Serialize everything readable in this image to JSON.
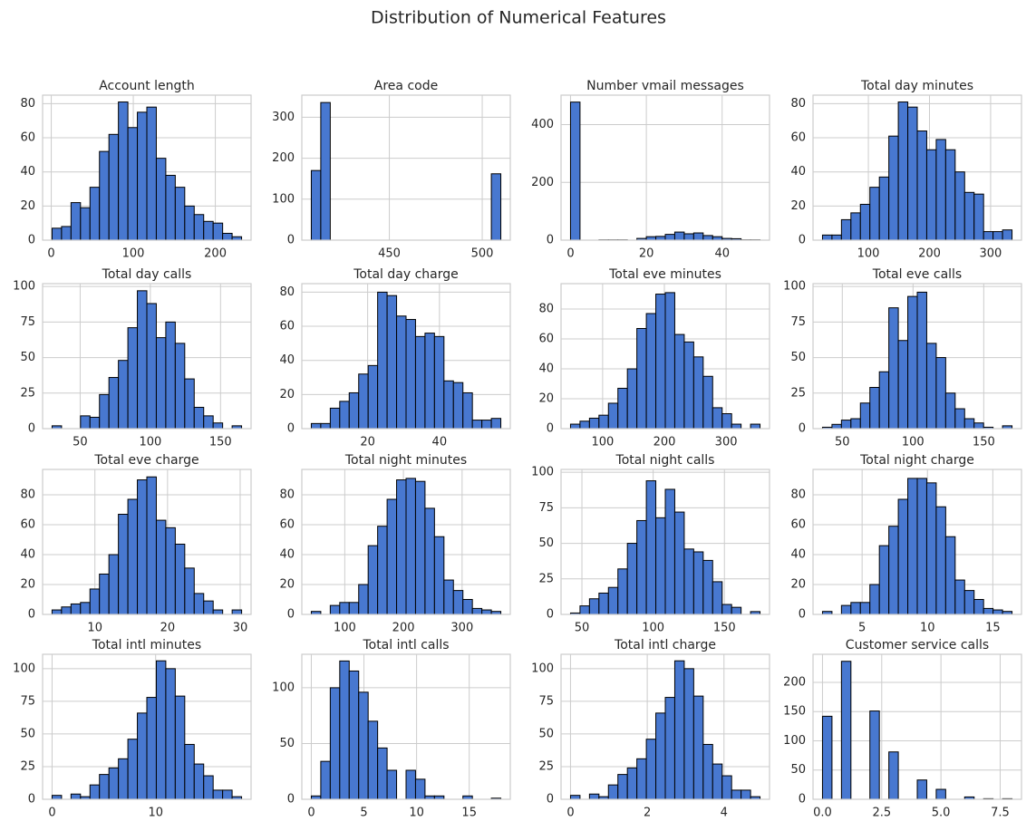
{
  "title": "Distribution of Numerical Features",
  "chart_data": [
    {
      "type": "histogram",
      "title": "Account length",
      "color": "#4878d0",
      "grid": true,
      "bins": [
        1,
        12.55,
        24.1,
        35.65,
        47.2,
        58.75,
        70.3,
        81.85,
        93.4,
        104.95,
        116.5,
        128.05,
        139.6,
        151.15,
        162.7,
        174.25,
        185.8,
        197.35,
        208.9,
        220.45,
        232
      ],
      "counts": [
        7,
        8,
        22,
        19,
        31,
        52,
        62,
        81,
        66,
        75,
        78,
        48,
        38,
        31,
        20,
        15,
        11,
        10,
        4,
        2
      ],
      "xlim": [
        -10.55,
        243.55
      ],
      "xticks": [
        0,
        100,
        200
      ],
      "ylim": [
        0,
        85
      ],
      "yticks": [
        0,
        20,
        40,
        60,
        80
      ]
    },
    {
      "type": "histogram",
      "title": "Area code",
      "color": "#4878d0",
      "grid": true,
      "bins": [
        408,
        413.1,
        418.2,
        423.3,
        428.4,
        433.5,
        438.6,
        443.7,
        448.8,
        453.9,
        459,
        464.1,
        469.2,
        474.3,
        479.4,
        484.5,
        489.6,
        494.7,
        499.8,
        504.9,
        510
      ],
      "counts": [
        170,
        336,
        0,
        0,
        0,
        0,
        0,
        0,
        0,
        0,
        0,
        0,
        0,
        0,
        0,
        0,
        0,
        0,
        0,
        162
      ],
      "xlim": [
        402.9,
        515.1
      ],
      "xticks": [
        450,
        500
      ],
      "ylim": [
        0,
        354
      ],
      "yticks": [
        0,
        100,
        200,
        300
      ]
    },
    {
      "type": "histogram",
      "title": "Number vmail messages",
      "color": "#4878d0",
      "grid": true,
      "bins": [
        0,
        2.5,
        5,
        7.5,
        10,
        12.5,
        15,
        17.5,
        20,
        22.5,
        25,
        27.5,
        30,
        32.5,
        35,
        37.5,
        40,
        42.5,
        45,
        47.5,
        50
      ],
      "counts": [
        478,
        0,
        0,
        1,
        1,
        1,
        0,
        6,
        12,
        13,
        20,
        28,
        22,
        25,
        16,
        12,
        6,
        5,
        1,
        1
      ],
      "xlim": [
        -2.5,
        52.5
      ],
      "xticks": [
        0,
        20,
        40
      ],
      "ylim": [
        0,
        502
      ],
      "yticks": [
        0,
        200,
        400
      ]
    },
    {
      "type": "histogram",
      "title": "Total day minutes",
      "color": "#4878d0",
      "grid": true,
      "bins": [
        25,
        40.5,
        56,
        71.5,
        87,
        102.5,
        118,
        133.5,
        149,
        164.5,
        180,
        195.5,
        211,
        226.5,
        242,
        257.5,
        273,
        288.5,
        304,
        319.5,
        335
      ],
      "counts": [
        3,
        3,
        12,
        16,
        21,
        31,
        37,
        61,
        81,
        78,
        64,
        53,
        59,
        53,
        40,
        28,
        27,
        5,
        5,
        6
      ],
      "xlim": [
        9.5,
        350.5
      ],
      "xticks": [
        100,
        200,
        300
      ],
      "ylim": [
        0,
        85
      ],
      "yticks": [
        0,
        20,
        40,
        60,
        80
      ]
    },
    {
      "type": "histogram",
      "title": "Total day calls",
      "color": "#4878d0",
      "grid": true,
      "bins": [
        30,
        36.75,
        43.5,
        50.25,
        57,
        63.75,
        70.5,
        77.25,
        84,
        90.75,
        97.5,
        104.25,
        111,
        117.75,
        124.5,
        131.25,
        138,
        144.75,
        151.5,
        158.25,
        165
      ],
      "counts": [
        2,
        0,
        0,
        9,
        8,
        24,
        36,
        48,
        71,
        97,
        88,
        64,
        75,
        60,
        35,
        15,
        9,
        4,
        0,
        2
      ],
      "xlim": [
        23.25,
        171.75
      ],
      "xticks": [
        50,
        100,
        150
      ],
      "ylim": [
        0,
        102
      ],
      "yticks": [
        0,
        25,
        50,
        75,
        100
      ]
    },
    {
      "type": "histogram",
      "title": "Total day charge",
      "color": "#4878d0",
      "grid": true,
      "bins": [
        4.3,
        6.94,
        9.58,
        12.22,
        14.86,
        17.5,
        20.14,
        22.78,
        25.42,
        28.06,
        30.7,
        33.34,
        35.98,
        38.62,
        41.26,
        43.9,
        46.54,
        49.18,
        51.82,
        54.46,
        57.1
      ],
      "counts": [
        3,
        3,
        12,
        16,
        21,
        32,
        37,
        80,
        78,
        66,
        64,
        54,
        56,
        54,
        28,
        27,
        21,
        5,
        5,
        6
      ],
      "xlim": [
        1.66,
        59.74
      ],
      "xticks": [
        20,
        40
      ],
      "ylim": [
        0,
        85
      ],
      "yticks": [
        0,
        20,
        40,
        60,
        80
      ]
    },
    {
      "type": "histogram",
      "title": "Total eve minutes",
      "color": "#4878d0",
      "grid": true,
      "bins": [
        48,
        63.35,
        78.7,
        94.05,
        109.4,
        124.75,
        140.1,
        155.45,
        170.8,
        186.15,
        201.5,
        216.85,
        232.2,
        247.55,
        262.9,
        278.25,
        293.6,
        308.95,
        324.3,
        339.65,
        355
      ],
      "counts": [
        3,
        5,
        7,
        9,
        17,
        27,
        40,
        67,
        77,
        90,
        91,
        63,
        58,
        48,
        35,
        14,
        10,
        3,
        0,
        3
      ],
      "xlim": [
        32.65,
        370.35
      ],
      "xticks": [
        100,
        200,
        300
      ],
      "ylim": [
        0,
        97
      ],
      "yticks": [
        0,
        20,
        40,
        60,
        80
      ]
    },
    {
      "type": "histogram",
      "title": "Total eve calls",
      "color": "#4878d0",
      "grid": true,
      "bins": [
        36,
        42.7,
        49.4,
        56.1,
        62.8,
        69.5,
        76.2,
        82.9,
        89.6,
        96.3,
        103,
        109.7,
        116.4,
        123.1,
        129.8,
        136.5,
        143.2,
        149.9,
        156.6,
        163.3,
        170
      ],
      "counts": [
        1,
        3,
        6,
        7,
        18,
        29,
        40,
        85,
        62,
        93,
        96,
        60,
        50,
        25,
        14,
        7,
        4,
        1,
        0,
        2
      ],
      "xlim": [
        29.3,
        176.7
      ],
      "xticks": [
        50,
        100,
        150
      ],
      "ylim": [
        0,
        102
      ],
      "yticks": [
        0,
        25,
        50,
        75,
        100
      ]
    },
    {
      "type": "histogram",
      "title": "Total eve charge",
      "color": "#4878d0",
      "grid": true,
      "bins": [
        4.1,
        5.405,
        6.71,
        8.015,
        9.32,
        10.625,
        11.93,
        13.235,
        14.54,
        15.845,
        17.15,
        18.455,
        19.76,
        21.065,
        22.37,
        23.675,
        24.98,
        26.285,
        27.59,
        28.895,
        30.2
      ],
      "counts": [
        3,
        5,
        7,
        8,
        17,
        27,
        40,
        67,
        77,
        90,
        92,
        63,
        58,
        47,
        31,
        14,
        9,
        3,
        0,
        3
      ],
      "xlim": [
        2.8,
        31.5
      ],
      "xticks": [
        10,
        20,
        30
      ],
      "ylim": [
        0,
        97
      ],
      "yticks": [
        0,
        20,
        40,
        60,
        80
      ]
    },
    {
      "type": "histogram",
      "title": "Total night minutes",
      "color": "#4878d0",
      "grid": true,
      "bins": [
        43,
        59.15,
        75.3,
        91.45,
        107.6,
        123.75,
        139.9,
        156.05,
        172.2,
        188.35,
        204.5,
        220.65,
        236.8,
        252.95,
        269.1,
        285.25,
        301.4,
        317.55,
        333.7,
        349.85,
        366
      ],
      "counts": [
        2,
        0,
        6,
        8,
        8,
        20,
        46,
        59,
        77,
        90,
        91,
        89,
        71,
        52,
        23,
        16,
        10,
        4,
        3,
        2
      ],
      "xlim": [
        26.85,
        382.15
      ],
      "xticks": [
        100,
        200,
        300
      ],
      "ylim": [
        0,
        97
      ],
      "yticks": [
        0,
        20,
        40,
        60,
        80
      ]
    },
    {
      "type": "histogram",
      "title": "Total night calls",
      "color": "#4878d0",
      "grid": true,
      "bins": [
        42,
        48.65,
        55.3,
        61.95,
        68.6,
        75.25,
        81.9,
        88.55,
        95.2,
        101.85,
        108.5,
        115.15,
        121.8,
        128.45,
        135.1,
        141.75,
        148.4,
        155.05,
        161.7,
        168.35,
        175
      ],
      "counts": [
        1,
        6,
        11,
        15,
        19,
        32,
        50,
        66,
        94,
        68,
        88,
        72,
        46,
        44,
        38,
        23,
        7,
        5,
        0,
        2
      ],
      "xlim": [
        35.35,
        181.65
      ],
      "xticks": [
        50,
        100,
        150
      ],
      "ylim": [
        0,
        102
      ],
      "yticks": [
        0,
        25,
        50,
        75,
        100
      ]
    },
    {
      "type": "histogram",
      "title": "Total night charge",
      "color": "#4878d0",
      "grid": true,
      "bins": [
        1.97,
        2.695,
        3.42,
        4.145,
        4.87,
        5.595,
        6.32,
        7.045,
        7.77,
        8.495,
        9.22,
        9.945,
        10.67,
        11.395,
        12.12,
        12.845,
        13.57,
        14.295,
        15.02,
        15.745,
        16.47
      ],
      "counts": [
        2,
        0,
        6,
        8,
        8,
        20,
        46,
        59,
        77,
        91,
        91,
        88,
        72,
        52,
        23,
        16,
        10,
        4,
        3,
        2
      ],
      "xlim": [
        1.245,
        17.195
      ],
      "xticks": [
        5,
        10,
        15
      ],
      "ylim": [
        0,
        97
      ],
      "yticks": [
        0,
        20,
        40,
        60,
        80
      ]
    },
    {
      "type": "histogram",
      "title": "Total intl minutes",
      "color": "#4878d0",
      "grid": true,
      "bins": [
        0,
        0.915,
        1.83,
        2.745,
        3.66,
        4.575,
        5.49,
        6.405,
        7.32,
        8.235,
        9.15,
        10.065,
        10.98,
        11.895,
        12.81,
        13.725,
        14.64,
        15.555,
        16.47,
        17.385,
        18.3
      ],
      "counts": [
        3,
        0,
        4,
        2,
        11,
        19,
        24,
        31,
        46,
        66,
        78,
        106,
        100,
        79,
        42,
        27,
        18,
        7,
        7,
        2
      ],
      "xlim": [
        -0.915,
        19.215
      ],
      "xticks": [
        0,
        10
      ],
      "ylim": [
        0,
        111
      ],
      "yticks": [
        0,
        25,
        50,
        75,
        100
      ]
    },
    {
      "type": "histogram",
      "title": "Total intl calls",
      "color": "#4878d0",
      "grid": true,
      "bins": [
        0,
        0.9,
        1.8,
        2.7,
        3.6,
        4.5,
        5.4,
        6.3,
        7.2,
        8.1,
        9,
        9.9,
        10.8,
        11.7,
        12.6,
        13.5,
        14.4,
        15.3,
        16.2,
        17.1,
        18
      ],
      "counts": [
        3,
        34,
        100,
        124,
        115,
        96,
        70,
        46,
        26,
        0,
        26,
        18,
        3,
        3,
        0,
        0,
        3,
        0,
        0,
        1
      ],
      "xlim": [
        -0.9,
        18.9
      ],
      "xticks": [
        0,
        5,
        10,
        15
      ],
      "ylim": [
        0,
        130
      ],
      "yticks": [
        0,
        50,
        100
      ]
    },
    {
      "type": "histogram",
      "title": "Total intl charge",
      "color": "#4878d0",
      "grid": true,
      "bins": [
        0,
        0.247,
        0.494,
        0.741,
        0.988,
        1.235,
        1.482,
        1.729,
        1.976,
        2.223,
        2.47,
        2.717,
        2.964,
        3.211,
        3.458,
        3.705,
        3.952,
        4.199,
        4.446,
        4.693,
        4.94
      ],
      "counts": [
        3,
        0,
        4,
        2,
        11,
        19,
        24,
        31,
        46,
        66,
        78,
        106,
        100,
        79,
        42,
        27,
        18,
        7,
        7,
        2
      ],
      "xlim": [
        -0.247,
        5.187
      ],
      "xticks": [
        0,
        2,
        4
      ],
      "ylim": [
        0,
        111
      ],
      "yticks": [
        0,
        25,
        50,
        75,
        100
      ]
    },
    {
      "type": "histogram",
      "title": "Customer service calls",
      "color": "#4878d0",
      "grid": true,
      "bins": [
        0,
        0.4,
        0.8,
        1.2,
        1.6,
        2,
        2.4,
        2.8,
        3.2,
        3.6,
        4,
        4.4,
        4.8,
        5.2,
        5.6,
        6,
        6.4,
        6.8,
        7.2,
        7.6,
        8
      ],
      "counts": [
        142,
        0,
        236,
        0,
        0,
        151,
        0,
        81,
        0,
        0,
        33,
        0,
        17,
        0,
        0,
        4,
        0,
        1,
        0,
        1
      ],
      "xlim": [
        -0.4,
        8.4
      ],
      "xticks": [
        {
          "value": 0,
          "label": "0.0"
        },
        2.5,
        {
          "value": 5,
          "label": "5.0"
        },
        7.5
      ],
      "ylim": [
        0,
        248
      ],
      "yticks": [
        0,
        50,
        100,
        150,
        200
      ]
    }
  ]
}
